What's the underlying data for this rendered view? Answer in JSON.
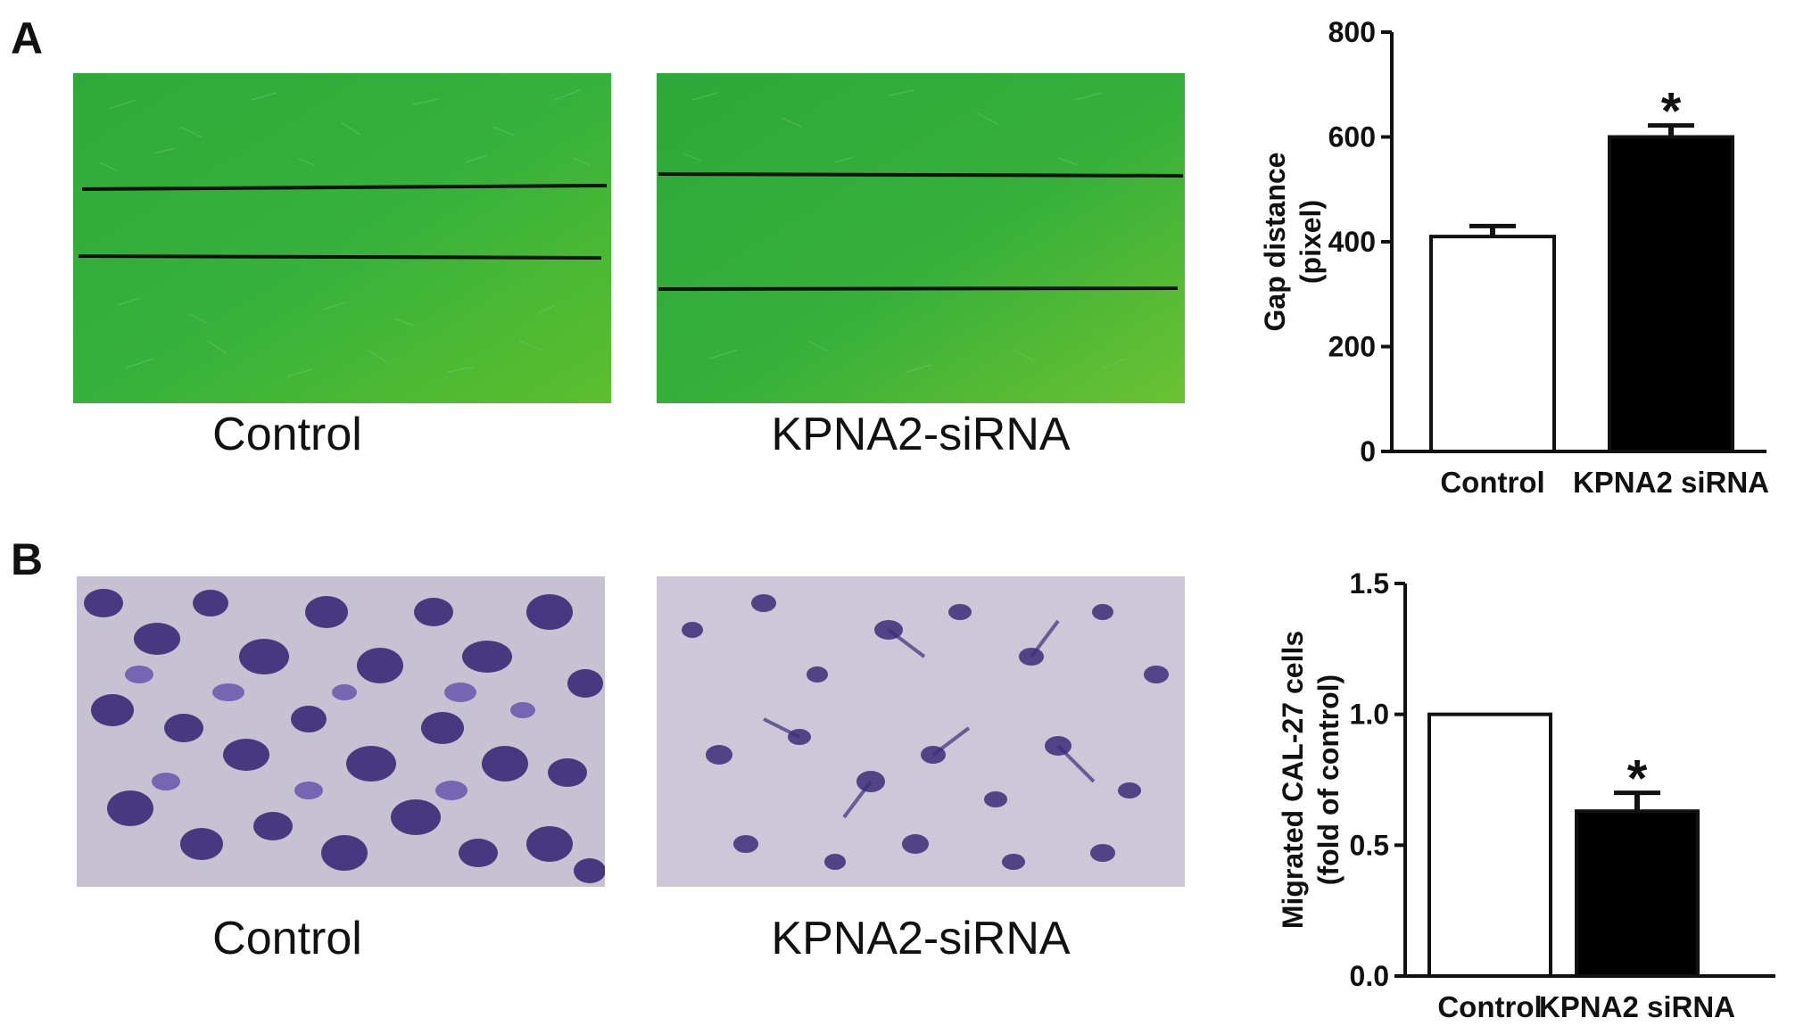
{
  "panels": {
    "a": {
      "letter": "A",
      "images": [
        {
          "caption": "Control",
          "color": "#3cb53a"
        },
        {
          "caption": "KPNA2-siRNA",
          "color": "#3cb53a"
        }
      ]
    },
    "b": {
      "letter": "B",
      "images": [
        {
          "caption": "Control",
          "color": "#c9c4d6"
        },
        {
          "caption": "KPNA2-siRNA",
          "color": "#cfcbd9"
        }
      ]
    }
  },
  "chart_data": [
    {
      "type": "bar",
      "categories": [
        "Control",
        "KPNA2 siRNA"
      ],
      "values": [
        410,
        600
      ],
      "errors": [
        20,
        22
      ],
      "bar_colors": [
        "#ffffff",
        "#000000"
      ],
      "significance": [
        "",
        "*"
      ],
      "title": "",
      "xlabel": "",
      "ylabel": [
        "Gap distance",
        "(pixel)"
      ],
      "ylim": [
        0,
        800
      ],
      "yticks": [
        "0",
        "200",
        "400",
        "600",
        "800"
      ],
      "ytick_values": [
        0,
        200,
        400,
        600,
        800
      ],
      "grid": false
    },
    {
      "type": "bar",
      "categories": [
        "Control",
        "KPNA2 siRNA"
      ],
      "values": [
        1.0,
        0.63
      ],
      "errors": [
        0,
        0.07
      ],
      "bar_colors": [
        "#ffffff",
        "#000000"
      ],
      "significance": [
        "",
        "*"
      ],
      "title": "",
      "xlabel": "",
      "ylabel": [
        "Migrated CAL-27 cells",
        "(fold of control)"
      ],
      "ylim": [
        0,
        1.5
      ],
      "yticks": [
        "0.0",
        "0.5",
        "1.0",
        "1.5"
      ],
      "ytick_values": [
        0,
        0.5,
        1.0,
        1.5
      ],
      "grid": false
    }
  ]
}
